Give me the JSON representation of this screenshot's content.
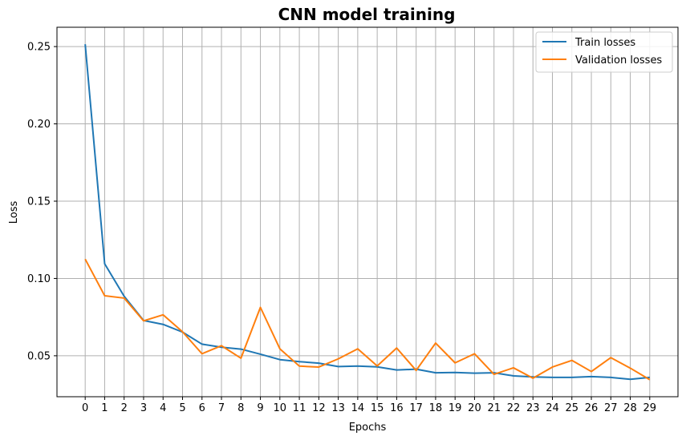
{
  "chart_data": {
    "type": "line",
    "title": "CNN model training",
    "xlabel": "Epochs",
    "ylabel": "Loss",
    "x": [
      0,
      1,
      2,
      3,
      4,
      5,
      6,
      7,
      8,
      9,
      10,
      11,
      12,
      13,
      14,
      15,
      16,
      17,
      18,
      19,
      20,
      21,
      22,
      23,
      24,
      25,
      26,
      27,
      28,
      29
    ],
    "xlim": [
      -1.45,
      30.45
    ],
    "ylim": [
      0.0235,
      0.2625
    ],
    "yticks": [
      0.05,
      0.1,
      0.15,
      0.2,
      0.25
    ],
    "ytick_labels": [
      "0.05",
      "0.10",
      "0.15",
      "0.20",
      "0.25"
    ],
    "grid": true,
    "legend_position": "top-right",
    "series": [
      {
        "name": "Train losses",
        "color": "#1f77b4",
        "values": [
          0.2515,
          0.1095,
          0.0885,
          0.0728,
          0.0703,
          0.0653,
          0.0575,
          0.0555,
          0.0543,
          0.051,
          0.0475,
          0.0462,
          0.0452,
          0.043,
          0.0433,
          0.0428,
          0.0408,
          0.0413,
          0.039,
          0.0392,
          0.0387,
          0.039,
          0.037,
          0.0363,
          0.036,
          0.036,
          0.0365,
          0.036,
          0.0348,
          0.036
        ]
      },
      {
        "name": "Validation losses",
        "color": "#ff7f0e",
        "values": [
          0.1125,
          0.0888,
          0.0873,
          0.0726,
          0.0765,
          0.0655,
          0.0513,
          0.0565,
          0.0484,
          0.0813,
          0.0545,
          0.0433,
          0.0427,
          0.048,
          0.0545,
          0.0434,
          0.055,
          0.0405,
          0.0582,
          0.0454,
          0.0513,
          0.038,
          0.0422,
          0.0355,
          0.0427,
          0.047,
          0.0398,
          0.0488,
          0.042,
          0.0345
        ]
      }
    ]
  }
}
